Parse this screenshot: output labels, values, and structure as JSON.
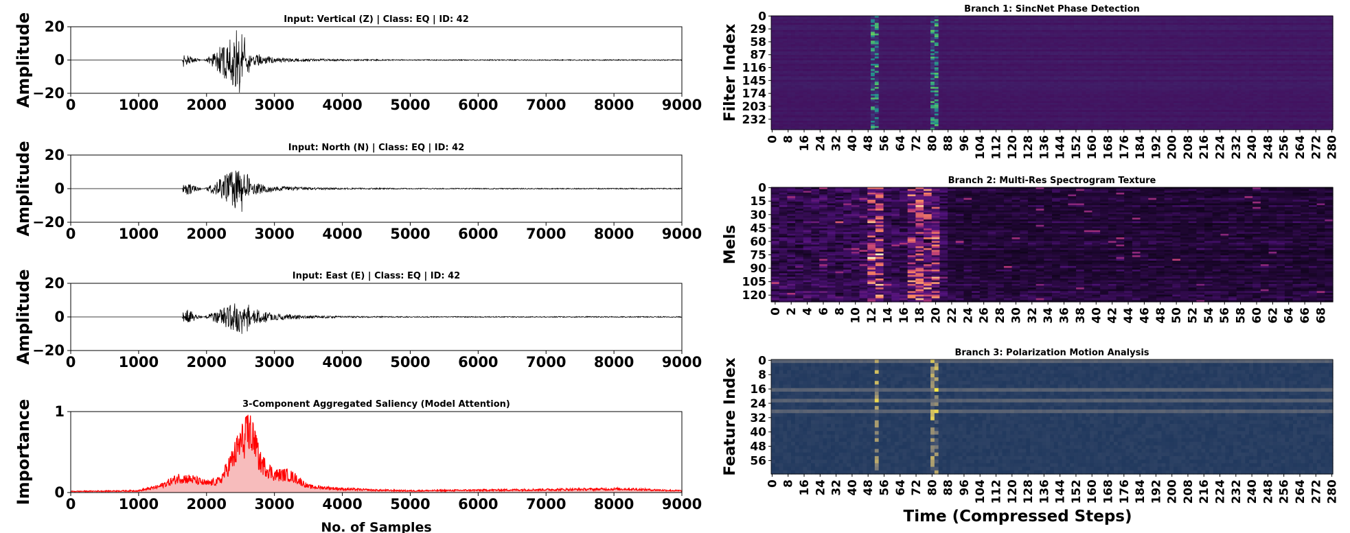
{
  "chart_data": [
    {
      "type": "line",
      "title": "Input: Vertical (Z) | Class: EQ | ID: 42",
      "xlabel": "",
      "ylabel": "Amplitude",
      "xlim": [
        0,
        9000
      ],
      "ylim": [
        -20,
        20
      ],
      "xticks": [
        0,
        1000,
        2000,
        3000,
        4000,
        5000,
        6000,
        7000,
        8000,
        9000
      ],
      "yticks": [
        20,
        0,
        -20
      ],
      "color": "#000000",
      "series": [
        {
          "x": [
            0,
            1640,
            1660,
            1700,
            2000,
            2490,
            2520,
            2560,
            2600,
            2700,
            3000,
            3500,
            4000,
            5000,
            9000
          ],
          "values": [
            0,
            0,
            5,
            -3,
            0.8,
            20,
            -18,
            16,
            -12,
            4,
            1.5,
            0.8,
            0.5,
            0.3,
            0.3
          ]
        }
      ]
    },
    {
      "type": "line",
      "title": "Input: North (N) | Class: EQ | ID: 42",
      "xlabel": "",
      "ylabel": "Amplitude",
      "xlim": [
        0,
        9000
      ],
      "ylim": [
        -20,
        20
      ],
      "xticks": [
        0,
        1000,
        2000,
        3000,
        4000,
        5000,
        6000,
        7000,
        8000,
        9000
      ],
      "yticks": [
        20,
        0,
        -20
      ],
      "color": "#000000",
      "series": [
        {
          "x": [
            0,
            1640,
            1660,
            1700,
            2000,
            2490,
            2520,
            2560,
            2600,
            2700,
            3000,
            3500,
            4000,
            5000,
            9000
          ],
          "values": [
            0,
            0,
            4,
            -4,
            0.8,
            14,
            -19,
            14,
            -10,
            4,
            1.5,
            0.8,
            0.5,
            0.3,
            0.3
          ]
        }
      ]
    },
    {
      "type": "line",
      "title": "Input: East (E) | Class: EQ | ID: 42",
      "xlabel": "",
      "ylabel": "Amplitude",
      "xlim": [
        0,
        9000
      ],
      "ylim": [
        -20,
        20
      ],
      "xticks": [
        0,
        1000,
        2000,
        3000,
        4000,
        5000,
        6000,
        7000,
        8000,
        9000
      ],
      "yticks": [
        20,
        0,
        -20
      ],
      "color": "#000000",
      "series": [
        {
          "x": [
            0,
            1640,
            1660,
            1700,
            2000,
            2490,
            2520,
            2560,
            2600,
            2700,
            3000,
            3500,
            4000,
            5000,
            9000
          ],
          "values": [
            0,
            0,
            6,
            -5,
            1,
            10,
            -11,
            11,
            -12,
            5,
            2,
            1,
            0.5,
            0.3,
            0.3
          ]
        }
      ]
    },
    {
      "type": "area",
      "title": "3-Component Aggregated Saliency (Model Attention)",
      "xlabel": "No. of Samples",
      "ylabel": "Importance",
      "xlim": [
        0,
        9000
      ],
      "ylim": [
        0,
        1
      ],
      "xticks": [
        0,
        1000,
        2000,
        3000,
        4000,
        5000,
        6000,
        7000,
        8000,
        9000
      ],
      "yticks": [
        1,
        0
      ],
      "color": "#ff0000",
      "series": [
        {
          "x": [
            0,
            1000,
            1300,
            1600,
            1800,
            2000,
            2200,
            2400,
            2500,
            2600,
            2650,
            2700,
            2800,
            3000,
            3200,
            3300,
            3500,
            4000,
            4500,
            5000,
            8150,
            9000
          ],
          "values": [
            0.02,
            0.03,
            0.1,
            0.25,
            0.22,
            0.15,
            0.2,
            0.6,
            0.85,
            0.95,
            1.0,
            0.8,
            0.5,
            0.3,
            0.3,
            0.25,
            0.1,
            0.06,
            0.04,
            0.03,
            0.06,
            0.03
          ]
        }
      ]
    },
    {
      "type": "heatmap",
      "title": "Branch 1: SincNet Phase Detection",
      "xlabel": "",
      "ylabel": "Filter Index",
      "colormap": "viridis",
      "n_cols": 281,
      "n_rows": 256,
      "xticks": [
        0,
        8,
        16,
        24,
        32,
        40,
        48,
        56,
        64,
        72,
        80,
        88,
        96,
        104,
        112,
        120,
        128,
        136,
        144,
        152,
        160,
        168,
        176,
        184,
        192,
        200,
        208,
        216,
        224,
        232,
        240,
        248,
        256,
        264,
        272,
        280
      ],
      "yticks": [
        0,
        29,
        58,
        87,
        116,
        145,
        174,
        203,
        232
      ],
      "hot_columns": [
        50,
        52,
        79,
        80,
        81
      ]
    },
    {
      "type": "heatmap",
      "title": "Branch 2: Multi-Res Spectrogram Texture",
      "xlabel": "",
      "ylabel": "Mels",
      "colormap": "magma",
      "n_cols": 70,
      "n_rows": 128,
      "xticks": [
        0,
        2,
        4,
        6,
        8,
        10,
        12,
        14,
        16,
        18,
        20,
        22,
        24,
        26,
        28,
        30,
        32,
        34,
        36,
        38,
        40,
        42,
        44,
        46,
        48,
        50,
        52,
        54,
        56,
        58,
        60,
        62,
        64,
        66,
        68
      ],
      "yticks": [
        0,
        15,
        30,
        45,
        60,
        75,
        90,
        105,
        120
      ],
      "hot_columns": [
        12,
        13,
        17,
        18,
        19,
        20
      ]
    },
    {
      "type": "heatmap",
      "title": "Branch 3: Polarization Motion Analysis",
      "xlabel": "Time (Compressed Steps)",
      "ylabel": "Feature Index",
      "colormap": "cividis",
      "n_cols": 281,
      "n_rows": 64,
      "xticks": [
        0,
        8,
        16,
        24,
        32,
        40,
        48,
        56,
        64,
        72,
        80,
        88,
        96,
        104,
        112,
        120,
        128,
        136,
        144,
        152,
        160,
        168,
        176,
        184,
        192,
        200,
        208,
        216,
        224,
        232,
        240,
        248,
        256,
        264,
        272,
        280
      ],
      "yticks": [
        0,
        8,
        16,
        24,
        32,
        40,
        48,
        56
      ],
      "hot_columns": [
        52,
        79,
        80,
        81
      ]
    }
  ]
}
